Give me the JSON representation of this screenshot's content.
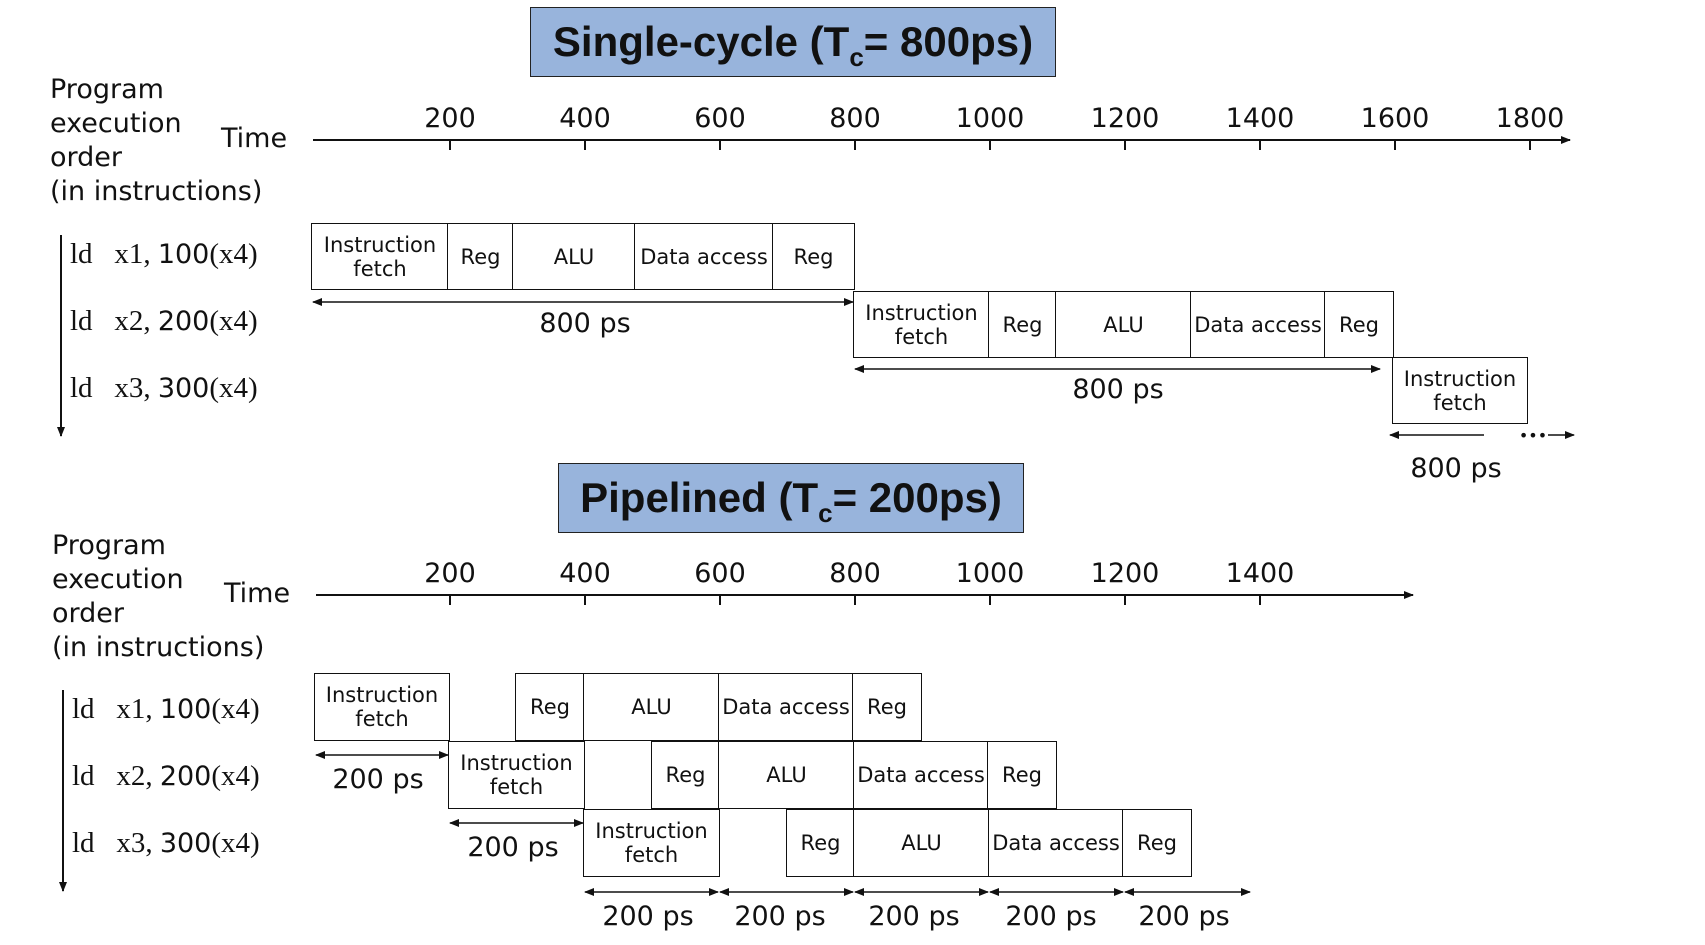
{
  "single": {
    "title": "Single-cycle (T",
    "title_sub": "c",
    "title_rest": "= 800ps)",
    "order_label": [
      "Program",
      "execution",
      "order",
      "(in instructions)"
    ],
    "time_label": "Time",
    "ticks": [
      "200",
      "400",
      "600",
      "800",
      "1000",
      "1200",
      "1400",
      "1600",
      "1800"
    ],
    "instructions": [
      {
        "op": "ld",
        "args": "x1, ",
        "num": "100",
        "reg": "(x4)"
      },
      {
        "op": "ld",
        "args": "x2, ",
        "num": "200",
        "reg": "(x4)"
      },
      {
        "op": "ld",
        "args": "x3, ",
        "num": "300",
        "reg": "(x4)"
      }
    ],
    "stages": [
      "Instruction fetch",
      "Reg",
      "ALU",
      "Data access",
      "Reg"
    ],
    "third_stage": "Instruction fetch",
    "durations": [
      "800 ps",
      "800 ps",
      "800 ps"
    ],
    "ellipsis": "•••"
  },
  "pipelined": {
    "title": "Pipelined (T",
    "title_sub": "c",
    "title_rest": "= 200ps)",
    "order_label": [
      "Program",
      "execution",
      "order",
      "(in instructions)"
    ],
    "time_label": "Time",
    "ticks": [
      "200",
      "400",
      "600",
      "800",
      "1000",
      "1200",
      "1400"
    ],
    "instructions": [
      {
        "op": "ld",
        "args": "x1, ",
        "num": "100",
        "reg": "(x4)"
      },
      {
        "op": "ld",
        "args": "x2, ",
        "num": "200",
        "reg": "(x4)"
      },
      {
        "op": "ld",
        "args": "x3, ",
        "num": "300",
        "reg": "(x4)"
      }
    ],
    "stages": [
      "Instruction fetch",
      "Reg",
      "ALU",
      "Data access",
      "Reg"
    ],
    "durations": [
      "200 ps",
      "200 ps",
      "200 ps",
      "200 ps",
      "200 ps",
      "200 ps",
      "200 ps"
    ]
  }
}
